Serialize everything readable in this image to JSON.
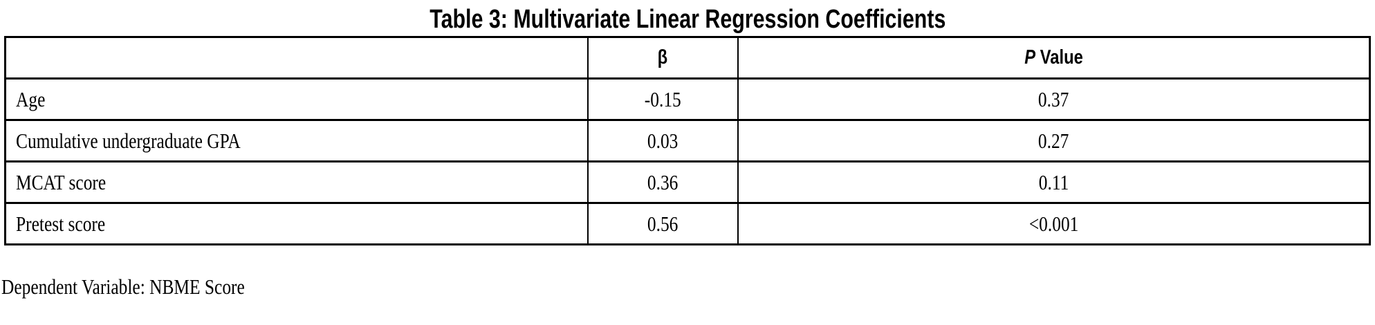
{
  "title": "Table 3: Multivariate Linear Regression Coefficients",
  "table": {
    "header": {
      "variable": "",
      "beta": "β",
      "p_italic": "P",
      "p_rest": " Value"
    },
    "rows": [
      {
        "variable": "Age",
        "beta": "-0.15",
        "p": "0.37"
      },
      {
        "variable": "Cumulative undergraduate GPA",
        "beta": "0.03",
        "p": "0.27"
      },
      {
        "variable": "MCAT score",
        "beta": "0.36",
        "p": "0.11"
      },
      {
        "variable": "Pretest score",
        "beta": "0.56",
        "p": "<0.001"
      }
    ]
  },
  "footnote": "Dependent Variable: NBME Score",
  "colors": {
    "text": "#000000",
    "border": "#000000",
    "background": "#ffffff"
  },
  "chart_data": {
    "type": "table",
    "title": "Table 3: Multivariate Linear Regression Coefficients",
    "columns": [
      "",
      "β",
      "P Value"
    ],
    "rows": [
      [
        "Age",
        "-0.15",
        "0.37"
      ],
      [
        "Cumulative undergraduate GPA",
        "0.03",
        "0.27"
      ],
      [
        "MCAT score",
        "0.36",
        "0.11"
      ],
      [
        "Pretest score",
        "0.56",
        "<0.001"
      ]
    ],
    "footnote": "Dependent Variable: NBME Score"
  }
}
